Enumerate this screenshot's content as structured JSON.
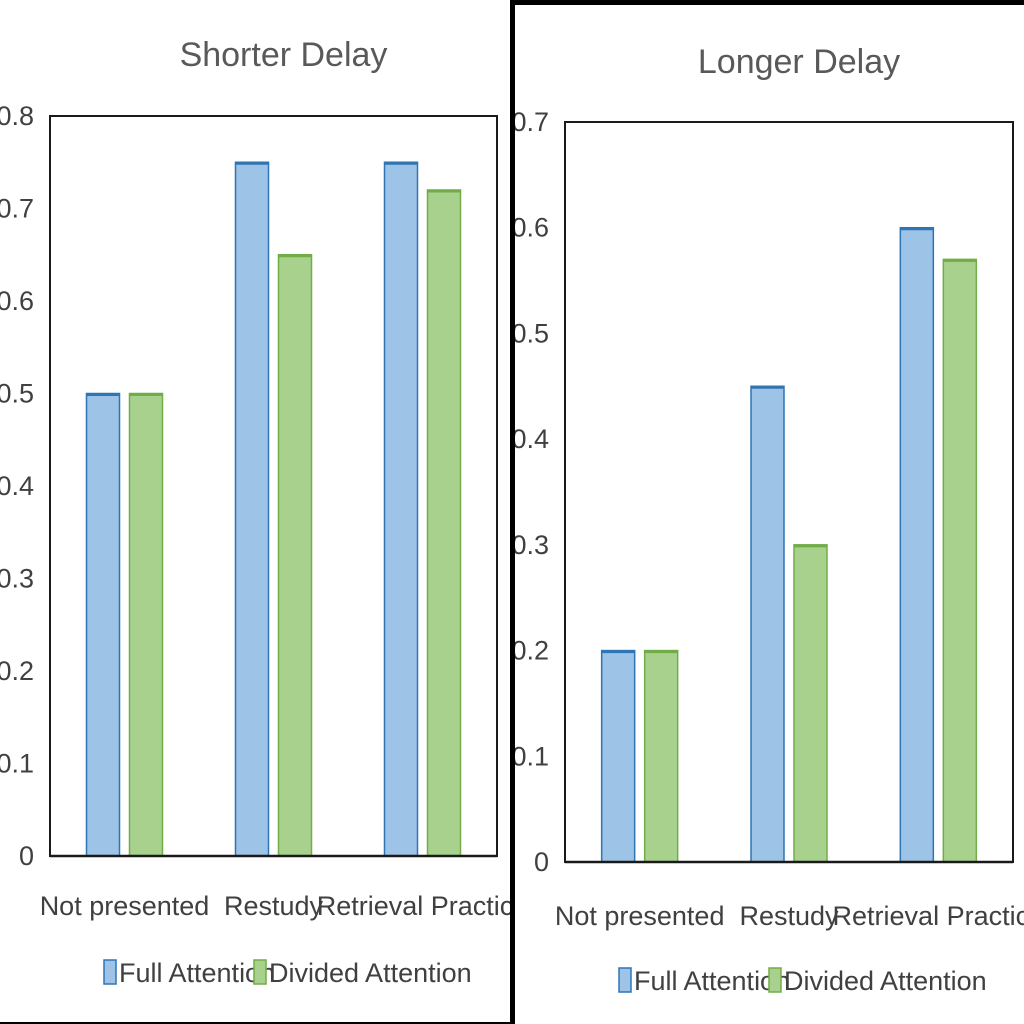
{
  "chart_data": [
    {
      "type": "bar",
      "title": "Shorter Delay",
      "categories": [
        "Not presented",
        "Restudy",
        "Retrieval Practice"
      ],
      "series": [
        {
          "name": "Full Attention",
          "values": [
            0.5,
            0.75,
            0.75
          ]
        },
        {
          "name": "Divided Attention",
          "values": [
            0.5,
            0.65,
            0.72
          ]
        }
      ],
      "ylim": [
        0,
        0.8
      ],
      "yticks": [
        "0",
        "0.1",
        "0.2",
        "0.3",
        "0.4",
        "0.5",
        "0.6",
        "0.7",
        "0.8"
      ],
      "xlabel": "",
      "ylabel": "",
      "grid": false,
      "legend_position": "bottom"
    },
    {
      "type": "bar",
      "title": "Longer Delay",
      "categories": [
        "Not presented",
        "Restudy",
        "Retrieval Practice"
      ],
      "series": [
        {
          "name": "Full Attention",
          "values": [
            0.2,
            0.45,
            0.6
          ]
        },
        {
          "name": "Divided Attention",
          "values": [
            0.2,
            0.3,
            0.57
          ]
        }
      ],
      "ylim": [
        0,
        0.7
      ],
      "yticks": [
        "0",
        "0.1",
        "0.2",
        "0.3",
        "0.4",
        "0.5",
        "0.6",
        "0.7"
      ],
      "xlabel": "",
      "ylabel": "",
      "grid": false,
      "legend_position": "bottom"
    }
  ],
  "colors": {
    "full_attention_fill": "#9dc3e6",
    "full_attention_stroke": "#2e75b6",
    "divided_attention_fill": "#a9d18e",
    "divided_attention_stroke": "#70ad47"
  }
}
